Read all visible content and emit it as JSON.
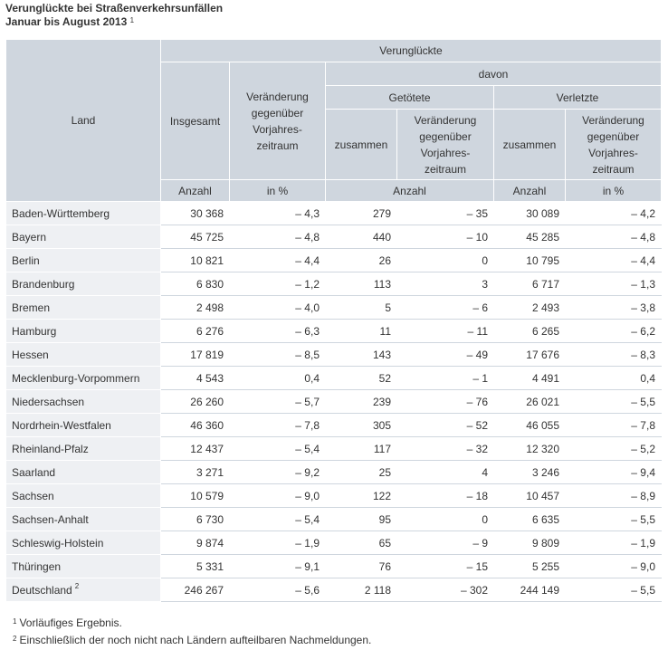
{
  "title": {
    "line1": "Verunglückte bei Straßenverkehrsunfällen",
    "line2": "Januar bis August 2013",
    "line2_sup": "1"
  },
  "header": {
    "land": "Land",
    "verunglueckte": "Verunglückte",
    "davon": "davon",
    "getoetete": "Getötete",
    "verletzte": "Verletzte",
    "insgesamt": "Insgesamt",
    "veraenderung": "Veränderung gegenüber Vorjahres-zeitraum",
    "zusammen": "zusammen",
    "unit_anzahl": "Anzahl",
    "unit_prozent": "in %"
  },
  "rows": [
    {
      "land": "Baden-Württemberg",
      "sup": "",
      "insgesamt": "30 368",
      "ins_pct": "– 4,3",
      "get_zus": "279",
      "get_ver": "– 35",
      "verl_zus": "30 089",
      "verl_pct": "– 4,2"
    },
    {
      "land": "Bayern",
      "sup": "",
      "insgesamt": "45 725",
      "ins_pct": "– 4,8",
      "get_zus": "440",
      "get_ver": "– 10",
      "verl_zus": "45 285",
      "verl_pct": "– 4,8"
    },
    {
      "land": "Berlin",
      "sup": "",
      "insgesamt": "10 821",
      "ins_pct": "– 4,4",
      "get_zus": "26",
      "get_ver": "0",
      "verl_zus": "10 795",
      "verl_pct": "– 4,4"
    },
    {
      "land": "Brandenburg",
      "sup": "",
      "insgesamt": "6 830",
      "ins_pct": "– 1,2",
      "get_zus": "113",
      "get_ver": "3",
      "verl_zus": "6 717",
      "verl_pct": "– 1,3"
    },
    {
      "land": "Bremen",
      "sup": "",
      "insgesamt": "2 498",
      "ins_pct": "– 4,0",
      "get_zus": "5",
      "get_ver": "– 6",
      "verl_zus": "2 493",
      "verl_pct": "– 3,8"
    },
    {
      "land": "Hamburg",
      "sup": "",
      "insgesamt": "6 276",
      "ins_pct": "– 6,3",
      "get_zus": "11",
      "get_ver": "– 11",
      "verl_zus": "6 265",
      "verl_pct": "– 6,2"
    },
    {
      "land": "Hessen",
      "sup": "",
      "insgesamt": "17 819",
      "ins_pct": "– 8,5",
      "get_zus": "143",
      "get_ver": "– 49",
      "verl_zus": "17 676",
      "verl_pct": "– 8,3"
    },
    {
      "land": "Mecklenburg-Vorpommern",
      "sup": "",
      "insgesamt": "4 543",
      "ins_pct": "0,4",
      "get_zus": "52",
      "get_ver": "– 1",
      "verl_zus": "4 491",
      "verl_pct": "0,4"
    },
    {
      "land": "Niedersachsen",
      "sup": "",
      "insgesamt": "26 260",
      "ins_pct": "– 5,7",
      "get_zus": "239",
      "get_ver": "– 76",
      "verl_zus": "26 021",
      "verl_pct": "– 5,5"
    },
    {
      "land": "Nordrhein-Westfalen",
      "sup": "",
      "insgesamt": "46 360",
      "ins_pct": "– 7,8",
      "get_zus": "305",
      "get_ver": "– 52",
      "verl_zus": "46 055",
      "verl_pct": "– 7,8"
    },
    {
      "land": "Rheinland-Pfalz",
      "sup": "",
      "insgesamt": "12 437",
      "ins_pct": "– 5,4",
      "get_zus": "117",
      "get_ver": "– 32",
      "verl_zus": "12 320",
      "verl_pct": "– 5,2"
    },
    {
      "land": "Saarland",
      "sup": "",
      "insgesamt": "3 271",
      "ins_pct": "– 9,2",
      "get_zus": "25",
      "get_ver": "4",
      "verl_zus": "3 246",
      "verl_pct": "– 9,4"
    },
    {
      "land": "Sachsen",
      "sup": "",
      "insgesamt": "10 579",
      "ins_pct": "– 9,0",
      "get_zus": "122",
      "get_ver": "– 18",
      "verl_zus": "10 457",
      "verl_pct": "– 8,9"
    },
    {
      "land": "Sachsen-Anhalt",
      "sup": "",
      "insgesamt": "6 730",
      "ins_pct": "– 5,4",
      "get_zus": "95",
      "get_ver": "0",
      "verl_zus": "6 635",
      "verl_pct": "– 5,5"
    },
    {
      "land": "Schleswig-Holstein",
      "sup": "",
      "insgesamt": "9 874",
      "ins_pct": "– 1,9",
      "get_zus": "65",
      "get_ver": "– 9",
      "verl_zus": "9 809",
      "verl_pct": "– 1,9"
    },
    {
      "land": "Thüringen",
      "sup": "",
      "insgesamt": "5 331",
      "ins_pct": "– 9,1",
      "get_zus": "76",
      "get_ver": "– 15",
      "verl_zus": "5 255",
      "verl_pct": "– 9,0"
    },
    {
      "land": "Deutschland",
      "sup": "2",
      "insgesamt": "246 267",
      "ins_pct": "– 5,6",
      "get_zus": "2 118",
      "get_ver": "– 302",
      "verl_zus": "244 149",
      "verl_pct": "– 5,5"
    }
  ],
  "footnotes": [
    {
      "mark": "1",
      "text": "Vorläufiges Ergebnis."
    },
    {
      "mark": "2",
      "text": "Einschließlich der noch nicht nach Ländern aufteilbaren Nachmeldungen."
    }
  ],
  "colors": {
    "header_bg": "#cfd6de",
    "land_bg": "#eef0f3",
    "text": "#333333"
  }
}
